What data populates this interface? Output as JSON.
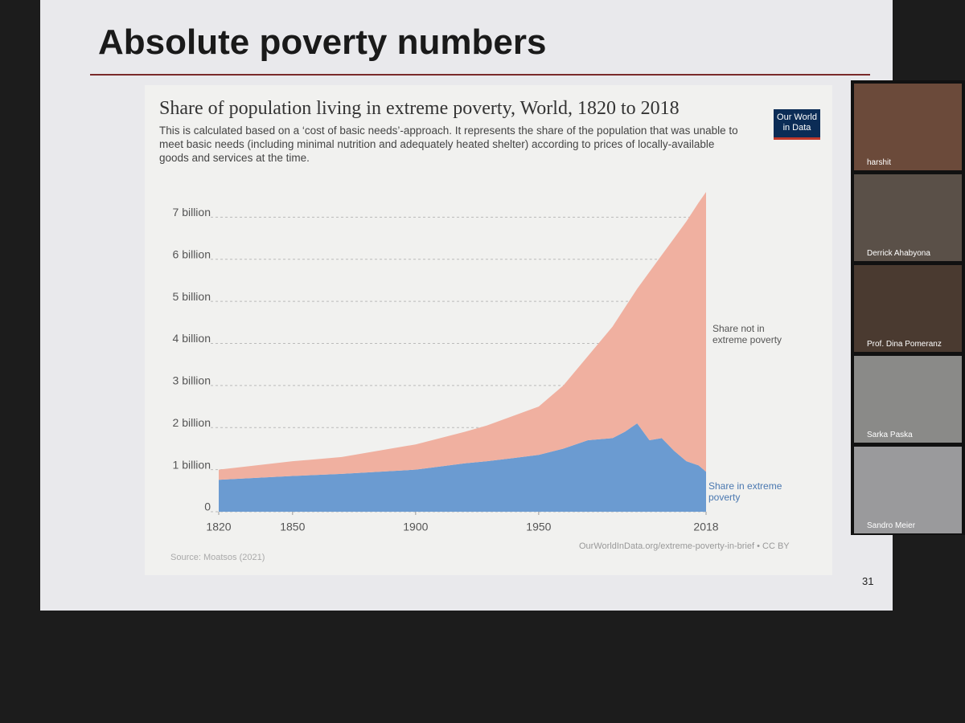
{
  "slide": {
    "title": "Absolute poverty numbers",
    "number": "31"
  },
  "chart_data": {
    "type": "stacked-area",
    "title": "Share of population living in extreme poverty, World, 1820 to 2018",
    "subtitle": "This is calculated based on a ‘cost of basic needs’-approach. It represents the share of the population that was unable to meet basic needs (including minimal nutrition and adequately heated shelter) according to prices of locally-available goods and services at the time.",
    "logo": "Our World in Data",
    "source": "Source: Moatsos (2021)",
    "url": "OurWorldInData.org/extreme-poverty-in-brief • CC BY",
    "x": [
      1820,
      1850,
      1870,
      1900,
      1920,
      1929,
      1950,
      1960,
      1970,
      1980,
      1985,
      1990,
      1995,
      2000,
      2005,
      2010,
      2015,
      2018
    ],
    "series": [
      {
        "name": "Share in extreme poverty",
        "color": "#6b9bd1",
        "values": [
          760000000,
          850000000,
          900000000,
          1000000000,
          1150000000,
          1200000000,
          1350000000,
          1500000000,
          1700000000,
          1750000000,
          1900000000,
          2100000000,
          1700000000,
          1750000000,
          1450000000,
          1200000000,
          1100000000,
          950000000
        ]
      },
      {
        "name": "Share not in extreme poverty",
        "color": "#f0b0a0",
        "values": [
          240000000,
          350000000,
          400000000,
          600000000,
          750000000,
          850000000,
          1150000000,
          1500000000,
          2000000000,
          2650000000,
          2950000000,
          3200000000,
          4000000000,
          4350000000,
          5050000000,
          5700000000,
          6250000000,
          6650000000
        ]
      }
    ],
    "xlim": [
      1820,
      2018
    ],
    "xticks": [
      1820,
      1850,
      1900,
      1950,
      2018
    ],
    "ylim": [
      0,
      7600000000
    ],
    "yticks": [
      0,
      {
        "value": 1000000000,
        "label": "1 billion"
      },
      {
        "value": 2000000000,
        "label": "2 billion"
      },
      {
        "value": 3000000000,
        "label": "3 billion"
      },
      {
        "value": 4000000000,
        "label": "4 billion"
      },
      {
        "value": 5000000000,
        "label": "5 billion"
      },
      {
        "value": 6000000000,
        "label": "6 billion"
      },
      {
        "value": 7000000000,
        "label": "7 billion"
      }
    ],
    "grid": true
  },
  "participants": [
    "harshit",
    "Derrick Ahabyona",
    "Prof. Dina Pomeranz",
    "Sarka Paska",
    "Sandro Meier"
  ]
}
